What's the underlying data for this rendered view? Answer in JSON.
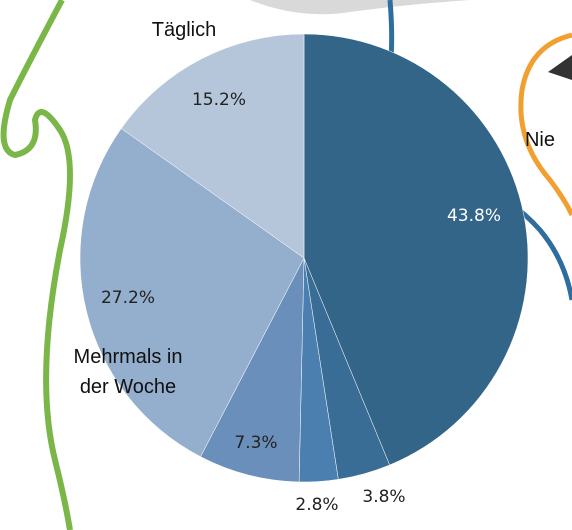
{
  "chart_data": {
    "type": "pie",
    "categories": [
      "Nie",
      null,
      null,
      null,
      "Mehrmals in der Woche",
      "Täglich"
    ],
    "values": [
      43.8,
      3.8,
      2.8,
      7.3,
      27.2,
      15.2
    ],
    "value_labels": [
      "43.8%",
      "3.8%",
      "2.8%",
      "7.3%",
      "27.2%",
      "15.2%"
    ],
    "colors": [
      "#336589",
      "#3a6d96",
      "#4a7fb0",
      "#6a8fbb",
      "#94aecd",
      "#b5c6da"
    ]
  }
}
